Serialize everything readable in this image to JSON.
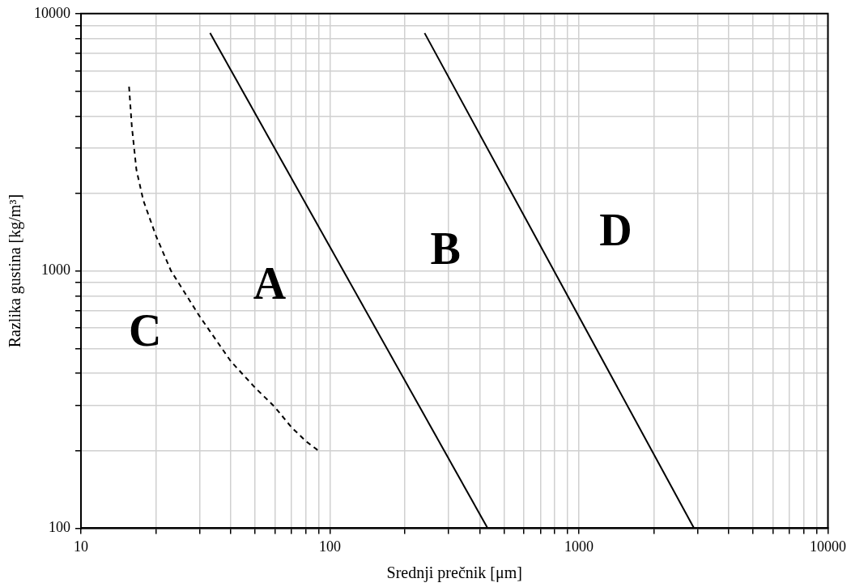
{
  "chart_data": {
    "type": "line",
    "xlabel": "Srednji prečnik [μm]",
    "ylabel": "Razlika gustina [kg/m³]",
    "log": "xy",
    "grid": true,
    "legend": false,
    "marker": "none",
    "xlim": [
      10,
      10000
    ],
    "ylim": [
      100,
      10000
    ],
    "xticks": [
      10,
      {
        "value": 20,
        "label": null
      },
      {
        "value": 30,
        "label": null
      },
      {
        "value": 40,
        "label": null
      },
      {
        "value": 50,
        "label": null
      },
      {
        "value": 60,
        "label": null
      },
      {
        "value": 70,
        "label": null
      },
      {
        "value": 80,
        "label": null
      },
      {
        "value": 90,
        "label": null
      },
      100,
      {
        "value": 200,
        "label": null
      },
      {
        "value": 300,
        "label": null
      },
      {
        "value": 400,
        "label": null
      },
      {
        "value": 500,
        "label": null
      },
      {
        "value": 600,
        "label": null
      },
      {
        "value": 700,
        "label": null
      },
      {
        "value": 800,
        "label": null
      },
      {
        "value": 900,
        "label": null
      },
      1000,
      {
        "value": 2000,
        "label": null
      },
      {
        "value": 3000,
        "label": null
      },
      {
        "value": 4000,
        "label": null
      },
      {
        "value": 5000,
        "label": null
      },
      {
        "value": 6000,
        "label": null
      },
      {
        "value": 7000,
        "label": null
      },
      {
        "value": 8000,
        "label": null
      },
      {
        "value": 9000,
        "label": null
      },
      10000
    ],
    "yticks": [
      100,
      {
        "value": 200,
        "label": null
      },
      {
        "value": 300,
        "label": null
      },
      {
        "value": 400,
        "label": null
      },
      {
        "value": 500,
        "label": null
      },
      {
        "value": 600,
        "label": null
      },
      {
        "value": 700,
        "label": null
      },
      {
        "value": 800,
        "label": null
      },
      {
        "value": 900,
        "label": null
      },
      1000,
      {
        "value": 2000,
        "label": null
      },
      {
        "value": 3000,
        "label": null
      },
      {
        "value": 4000,
        "label": null
      },
      {
        "value": 5000,
        "label": null
      },
      {
        "value": 6000,
        "label": null
      },
      {
        "value": 7000,
        "label": null
      },
      {
        "value": 8000,
        "label": null
      },
      {
        "value": 9000,
        "label": null
      },
      10000
    ],
    "series": [
      {
        "color": "#000000",
        "line_style": "solid",
        "x": [
          33,
          430
        ],
        "values": [
          8400,
          100
        ]
      },
      {
        "color": "#000000",
        "line_style": "solid",
        "x": [
          240,
          2900
        ],
        "values": [
          8400,
          100
        ]
      },
      {
        "color": "#000000",
        "line_style": "dashed",
        "x": [
          15.6,
          16,
          16.7,
          17.8,
          20,
          23,
          29.9,
          40,
          50,
          60,
          70,
          80,
          90
        ],
        "values": [
          5200,
          3660,
          2470,
          1880,
          1370,
          1000,
          668,
          445,
          352,
          296,
          247,
          218,
          200
        ]
      }
    ],
    "annotations": [
      "A",
      "B",
      "C",
      "D"
    ]
  }
}
